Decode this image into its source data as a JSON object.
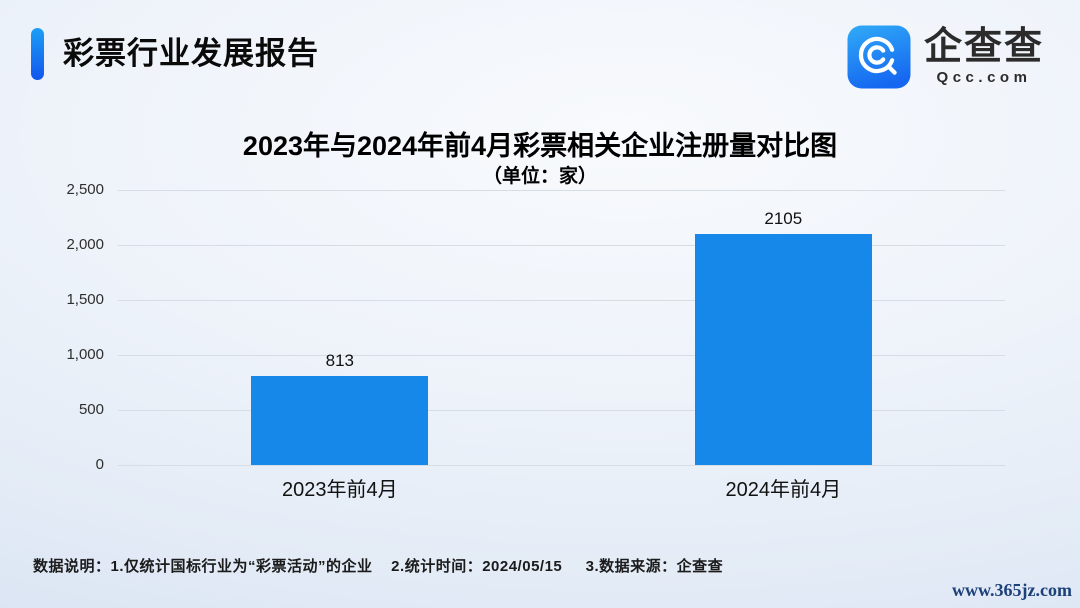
{
  "header": {
    "title": "彩票行业发展报告",
    "accent_gradient": [
      "#1e9ff6",
      "#1156ed"
    ]
  },
  "logo": {
    "name": "企查查",
    "domain": "Qcc.com",
    "icon_gradient": [
      "#2fa7f7",
      "#1566f0"
    ]
  },
  "chart_data": {
    "type": "bar",
    "title": "2023年与2024年前4月彩票相关企业注册量对比图",
    "subtitle": "（单位：家）",
    "categories": [
      "2023年前4月",
      "2024年前4月"
    ],
    "values": [
      813,
      2105
    ],
    "value_labels": [
      "813",
      "2105"
    ],
    "xlabel": "",
    "ylabel": "",
    "ylim": [
      0,
      2500
    ],
    "ytick_interval": 500,
    "ytick_labels": [
      "0",
      "500",
      "1,000",
      "1,500",
      "2,000",
      "2,500"
    ],
    "bar_color": "#1588e9",
    "grid": true,
    "gridline_color": "#d7dde5",
    "legend": "none"
  },
  "footer": {
    "note": "数据说明：1.仅统计国标行业为“彩票活动”的企业    2.统计时间：2024/05/15     3.数据来源：企查查",
    "watermark": "www.365jz.com"
  }
}
